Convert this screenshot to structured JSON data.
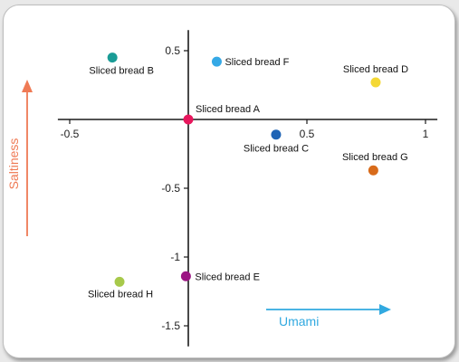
{
  "chart_data": {
    "type": "scatter",
    "xlabel": "Umami",
    "ylabel": "Saltiness",
    "xlim": [
      -0.55,
      1.05
    ],
    "ylim": [
      -1.65,
      0.65
    ],
    "x_ticks": [
      -0.5,
      0.5,
      1
    ],
    "x_tick_labels": [
      "-0.5",
      "0.5",
      "1"
    ],
    "y_ticks": [
      0.5,
      -0.5,
      -1,
      -1.5
    ],
    "y_tick_labels": [
      "0.5",
      "-0.5",
      "-1",
      "-1.5"
    ],
    "grid": false,
    "points": [
      {
        "label": "Sliced bread A",
        "x": 0.0,
        "y": 0.0,
        "color": "#e8175d"
      },
      {
        "label": "Sliced bread B",
        "x": -0.32,
        "y": 0.45,
        "color": "#1a9c96"
      },
      {
        "label": "Sliced bread C",
        "x": 0.37,
        "y": -0.11,
        "color": "#1f64b5"
      },
      {
        "label": "Sliced bread D",
        "x": 0.79,
        "y": 0.27,
        "color": "#f4d835"
      },
      {
        "label": "Sliced bread E",
        "x": -0.01,
        "y": -1.14,
        "color": "#9b1683"
      },
      {
        "label": "Sliced bread F",
        "x": 0.12,
        "y": 0.42,
        "color": "#35a9e6"
      },
      {
        "label": "Sliced bread G",
        "x": 0.78,
        "y": -0.37,
        "color": "#d86b1a"
      },
      {
        "label": "Sliced bread H",
        "x": -0.29,
        "y": -1.18,
        "color": "#a7c94a"
      }
    ],
    "axis_arrow_colors": {
      "umami": "#31a9e0",
      "saltiness": "#ef7a55"
    }
  }
}
